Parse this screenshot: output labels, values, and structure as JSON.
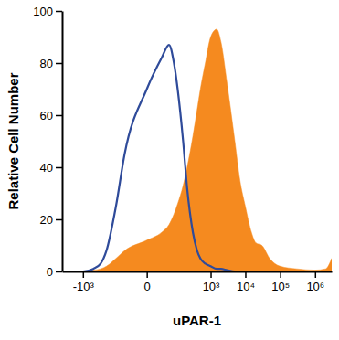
{
  "chart_data": {
    "type": "line",
    "x_label": "uPAR-1",
    "y_label": "Relative Cell Number",
    "x": [
      -3000,
      -1000,
      -500,
      -300,
      -200,
      -100,
      -50,
      0,
      25,
      50,
      75,
      100,
      150,
      200,
      300,
      400,
      500,
      700,
      1000,
      1500,
      2000,
      3000,
      5000,
      7000,
      10000,
      15000,
      20000,
      30000,
      50000,
      100000,
      300000,
      1000000,
      2000000,
      3000000
    ],
    "series": [
      {
        "type": "area",
        "color": "#f58a1f",
        "values": [
          0,
          0,
          0.5,
          1,
          2,
          5,
          8,
          12,
          15,
          18,
          22,
          26,
          33,
          40,
          52,
          62,
          70,
          80,
          90,
          93,
          88,
          72,
          50,
          35,
          25,
          15,
          11,
          10,
          5,
          2,
          1,
          0.5,
          1,
          5
        ]
      },
      {
        "type": "line",
        "color": "#2f4b9a",
        "values": [
          0,
          0,
          1,
          3,
          8,
          25,
          45,
          70,
          82,
          87,
          80,
          70,
          50,
          32,
          15,
          8,
          5,
          3,
          2,
          1,
          1,
          0.5,
          0,
          0,
          0,
          0,
          0,
          0,
          0,
          0,
          0,
          0,
          0,
          0
        ]
      }
    ],
    "log": "x",
    "xlim": [
      -4000,
      3000000
    ],
    "xticks": [
      {
        "value": -1000,
        "label": "-10³"
      },
      0,
      {
        "value": 1000,
        "label": "10³"
      },
      {
        "value": 10000,
        "label": "10⁴"
      },
      {
        "value": 100000,
        "label": "10⁵"
      },
      {
        "value": 1000000,
        "label": "10⁶"
      }
    ],
    "ylim": [
      0,
      100
    ],
    "yticks": [
      0,
      20,
      40,
      60,
      80,
      100
    ]
  }
}
